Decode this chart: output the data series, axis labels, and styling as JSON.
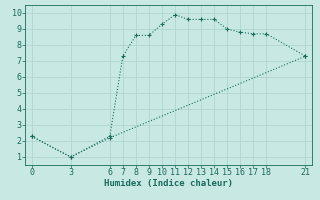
{
  "line1_x": [
    0,
    3,
    6,
    7,
    8,
    9,
    10,
    11,
    12,
    13,
    14,
    15,
    16,
    17,
    18,
    21
  ],
  "line1_y": [
    2.3,
    1.0,
    2.3,
    7.3,
    8.6,
    8.6,
    9.3,
    9.9,
    9.6,
    9.6,
    9.6,
    9.0,
    8.8,
    8.7,
    8.7,
    7.3
  ],
  "line2_x": [
    0,
    3,
    6,
    21
  ],
  "line2_y": [
    2.3,
    1.0,
    2.2,
    7.3
  ],
  "color": "#1a6b5a",
  "bg_color": "#c8e8e4",
  "grid_color": "#b0d4d0",
  "xlabel": "Humidex (Indice chaleur)",
  "xticks": [
    0,
    3,
    6,
    7,
    8,
    9,
    10,
    11,
    12,
    13,
    14,
    15,
    16,
    17,
    18,
    21
  ],
  "yticks": [
    1,
    2,
    3,
    4,
    5,
    6,
    7,
    8,
    9,
    10
  ],
  "xlim": [
    -0.5,
    21.5
  ],
  "ylim": [
    0.5,
    10.5
  ]
}
